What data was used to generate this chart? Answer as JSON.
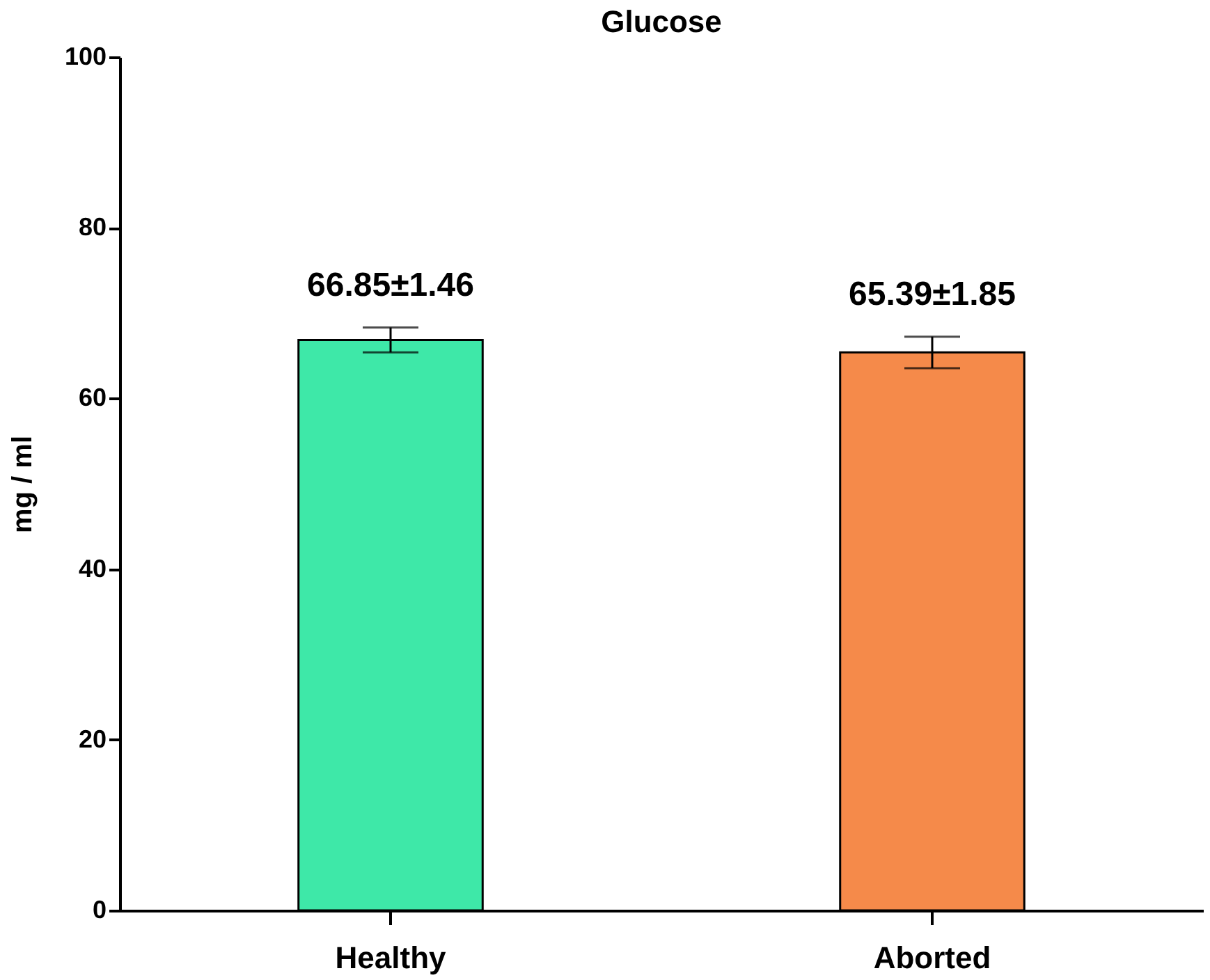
{
  "chart_data": {
    "type": "bar",
    "title": "Glucose",
    "ylabel": "mg / ml",
    "categories": [
      "Healthy",
      "Aborted"
    ],
    "values": [
      66.85,
      65.39
    ],
    "errors": [
      1.46,
      1.85
    ],
    "value_labels": [
      "66.85±1.46",
      "65.39±1.85"
    ],
    "colors": [
      "#3ee8a8",
      "#f58a4a"
    ],
    "ylim": [
      0,
      100
    ],
    "yticks": [
      0,
      20,
      40,
      60,
      80,
      100
    ],
    "grid": false,
    "legend": false
  }
}
